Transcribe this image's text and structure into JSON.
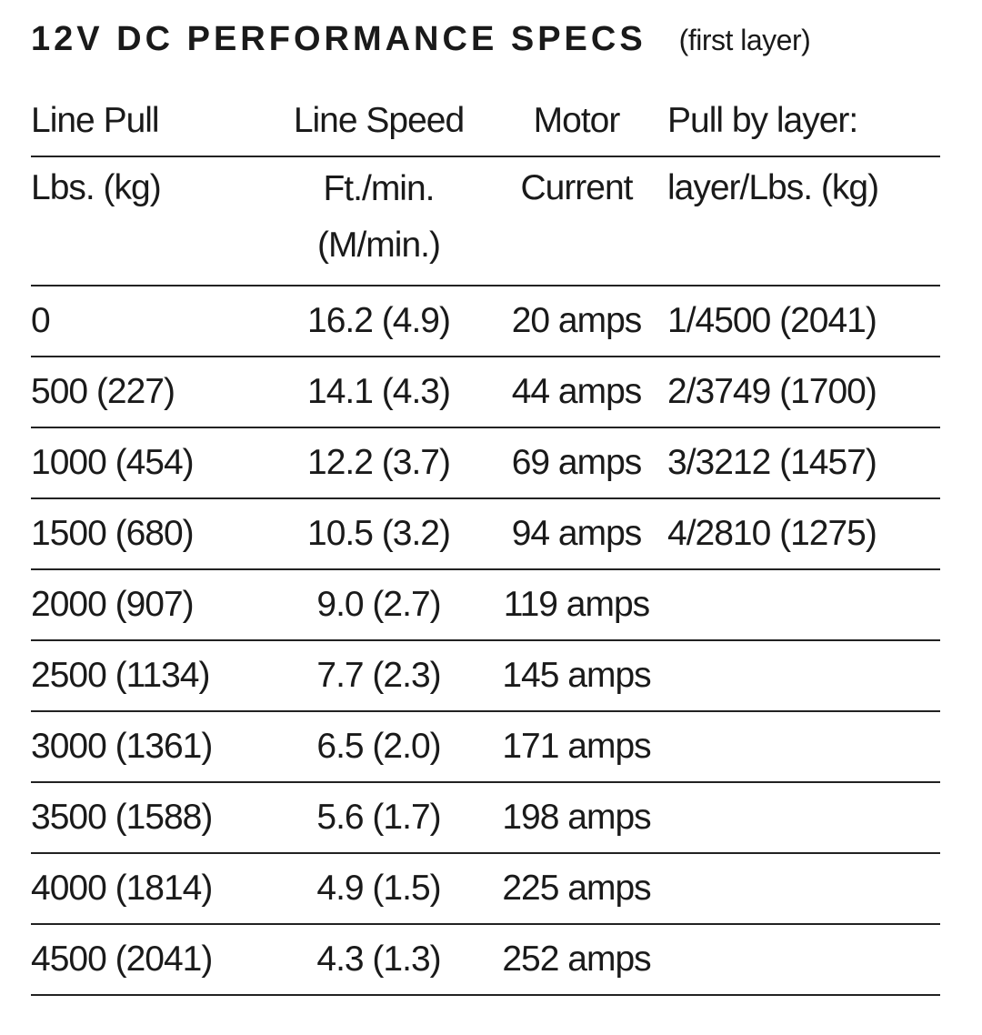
{
  "header": {
    "title": "12V DC PERFORMANCE SPECS",
    "subtitle": "(first layer)"
  },
  "table": {
    "header_rows": [
      [
        "Line Pull",
        "Line Speed",
        "Motor",
        "Pull by layer:"
      ],
      [
        "Lbs. (kg)",
        "Ft./min. (M/min.)",
        "Current",
        "layer/Lbs. (kg)"
      ]
    ],
    "rows": [
      [
        "0",
        "16.2 (4.9)",
        "20 amps",
        "1/4500 (2041)"
      ],
      [
        "500 (227)",
        "14.1 (4.3)",
        "44 amps",
        "2/3749 (1700)"
      ],
      [
        "1000 (454)",
        "12.2 (3.7)",
        "69 amps",
        "3/3212 (1457)"
      ],
      [
        "1500 (680)",
        "10.5 (3.2)",
        "94 amps",
        "4/2810 (1275)"
      ],
      [
        "2000 (907)",
        "9.0 (2.7)",
        "119 amps"
      ],
      [
        "2500 (1134)",
        "7.7 (2.3)",
        "145 amps"
      ],
      [
        "3000 (1361)",
        "6.5 (2.0)",
        "171 amps"
      ],
      [
        "3500 (1588)",
        "5.6 (1.7)",
        "198 amps"
      ],
      [
        "4000 (1814)",
        "4.9 (1.5)",
        "225 amps"
      ],
      [
        "4500 (2041)",
        "4.3 (1.3)",
        "252 amps"
      ]
    ]
  }
}
